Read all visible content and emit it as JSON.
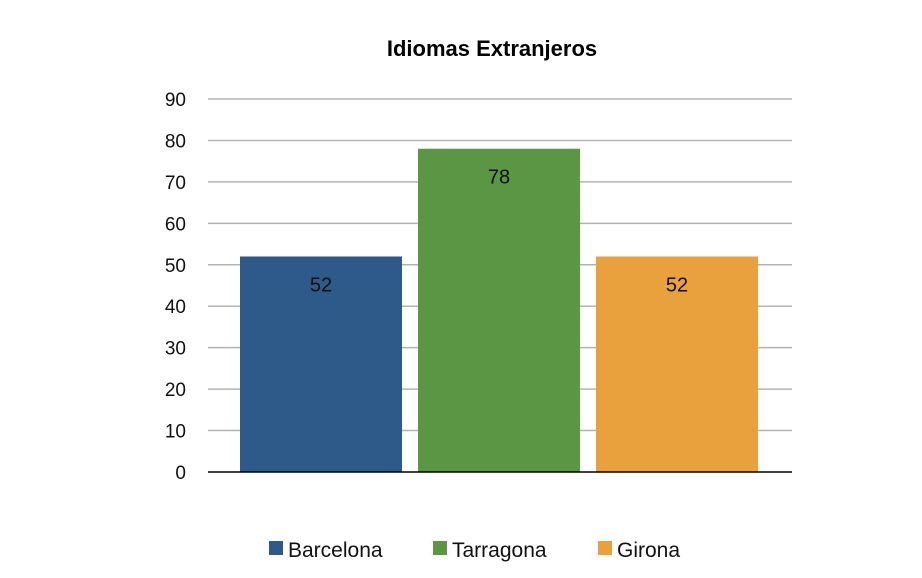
{
  "chart_data": {
    "type": "bar",
    "title": "Idiomas Extranjeros",
    "xlabel": "",
    "ylabel": "",
    "categories": [
      "Barcelona",
      "Tarragona",
      "Girona"
    ],
    "values": [
      52,
      78,
      52
    ],
    "data_labels": [
      "52",
      "78",
      "52"
    ],
    "colors": [
      "#2e5a8a",
      "#5b9645",
      "#e8a13c"
    ],
    "ylim": [
      0,
      90
    ],
    "yticks": [
      0,
      10,
      20,
      30,
      40,
      50,
      60,
      70,
      80,
      90
    ],
    "grid": true,
    "legend": {
      "position": "bottom",
      "entries": [
        "Barcelona",
        "Tarragona",
        "Girona"
      ]
    }
  }
}
